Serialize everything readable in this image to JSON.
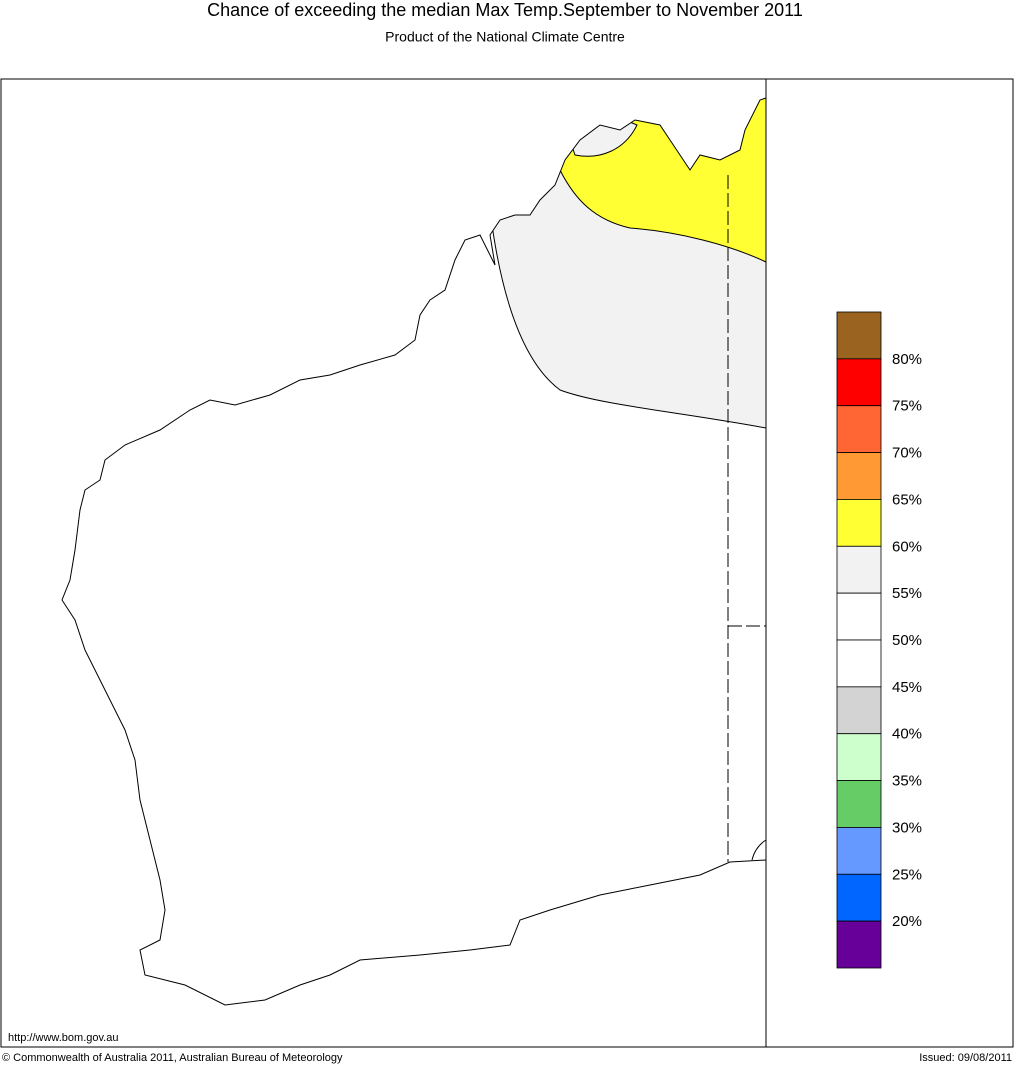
{
  "header": {
    "title": "Chance of exceeding the median Max Temp.September to November 2011",
    "subtitle": "Product of the National Climate Centre"
  },
  "legend": {
    "colors": [
      "#9a6320",
      "#ff0000",
      "#ff6633",
      "#ff9933",
      "#ffff33",
      "#f2f2f2",
      "#ffffff",
      "#ffffff",
      "#d3d3d3",
      "#ccffcc",
      "#66cc66",
      "#6699ff",
      "#0066ff",
      "#660099"
    ],
    "labels": [
      "80%",
      "75%",
      "70%",
      "65%",
      "60%",
      "55%",
      "50%",
      "45%",
      "40%",
      "35%",
      "30%",
      "25%",
      "20%"
    ]
  },
  "footer": {
    "url": "http://www.bom.gov.au",
    "copyright": "© Commonwealth of Australia 2011, Australian Bureau of Meteorology",
    "issued": "Issued: 09/08/2011"
  }
}
